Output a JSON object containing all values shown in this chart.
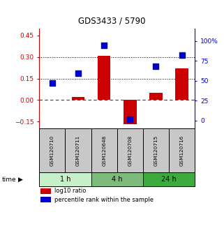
{
  "title": "GDS3433 / 5790",
  "samples": [
    "GSM120710",
    "GSM120711",
    "GSM120648",
    "GSM120708",
    "GSM120715",
    "GSM120716"
  ],
  "log10_ratio": [
    0.0,
    0.02,
    0.31,
    -0.17,
    0.05,
    0.22
  ],
  "percentile_rank": [
    47,
    60,
    95,
    2,
    68,
    82
  ],
  "groups": [
    {
      "label": "1 h",
      "indices": [
        0,
        1
      ],
      "color": "#c8f0c8"
    },
    {
      "label": "4 h",
      "indices": [
        2,
        3
      ],
      "color": "#7dbb7d"
    },
    {
      "label": "24 h",
      "indices": [
        4,
        5
      ],
      "color": "#3daa3d"
    }
  ],
  "bar_color": "#cc0000",
  "dot_color": "#0000cc",
  "ylim_left": [
    -0.2,
    0.5
  ],
  "ylim_right": [
    -10,
    116
  ],
  "yticks_left": [
    -0.15,
    0,
    0.15,
    0.3,
    0.45
  ],
  "yticks_right": [
    0,
    25,
    50,
    75,
    100
  ],
  "hlines": [
    0.15,
    0.3
  ],
  "zero_line_color": "#cc0000",
  "hline_color": "#000000",
  "sample_box_color": "#c8c8c8",
  "background_color": "#ffffff",
  "bar_width": 0.5,
  "dot_size": 28
}
